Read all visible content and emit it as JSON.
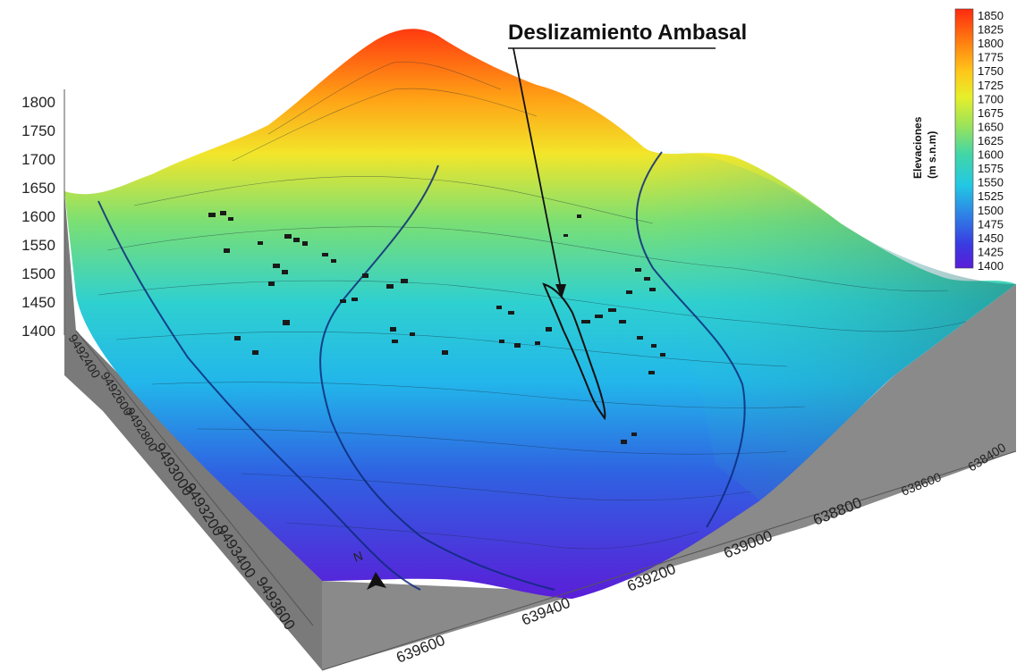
{
  "map": {
    "annotation": "Deslizamiento Ambasal",
    "north_label": "N",
    "z_axis": {
      "ticks": [
        "1800",
        "1750",
        "1700",
        "1650",
        "1600",
        "1550",
        "1500",
        "1450",
        "1400"
      ]
    },
    "y_axis": {
      "ticks": [
        "9492600",
        "9492800",
        "9493000",
        "9493200",
        "9493400",
        "9493600",
        "9492400"
      ]
    },
    "x_axis": {
      "ticks": [
        "639600",
        "639400",
        "639200",
        "639000",
        "638800",
        "638600",
        "638400"
      ]
    },
    "colorbar": {
      "title_line1": "Elevaciones",
      "title_line2": "(m s.n.m)",
      "labels": [
        "1850",
        "1825",
        "1800",
        "1775",
        "1750",
        "1725",
        "1700",
        "1675",
        "1650",
        "1625",
        "1600",
        "1575",
        "1550",
        "1525",
        "1500",
        "1475",
        "1450",
        "1425",
        "1400"
      ],
      "colors": [
        "#ff2a10",
        "#ff7a10",
        "#ffc61a",
        "#e6ef2a",
        "#9be35a",
        "#42d6a6",
        "#22c8e4",
        "#2f7ee6",
        "#3a3ae0",
        "#5a1ed8"
      ]
    },
    "terrain_colors": {
      "high": "#ff4a12",
      "mid_high": "#f2e62a",
      "mid": "#5ed88f",
      "mid_low": "#25c9e6",
      "low": "#3147e0",
      "lowest": "#5a1ed8",
      "side_wall": "#808080"
    }
  }
}
